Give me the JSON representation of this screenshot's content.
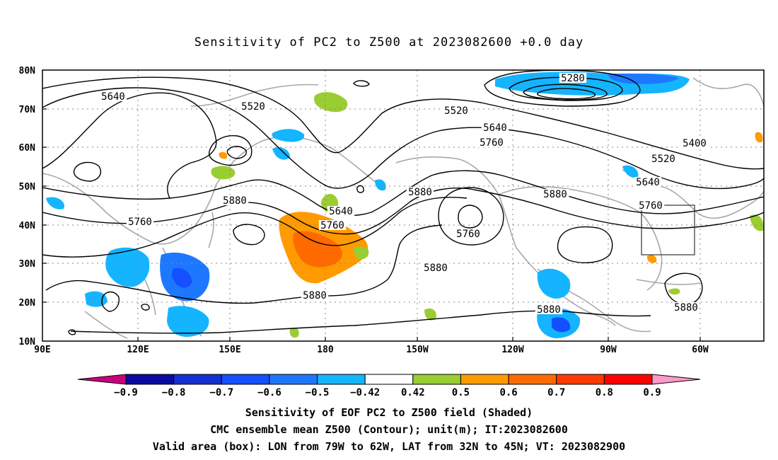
{
  "title": "Sensitivity of PC2 to Z500 at 2023082600 +0.0 day",
  "map": {
    "lat_labels": [
      "80N",
      "70N",
      "60N",
      "50N",
      "40N",
      "30N",
      "20N",
      "10N"
    ],
    "lon_labels": [
      "90E",
      "120E",
      "150E",
      "180",
      "150W",
      "120W",
      "90W",
      "60W"
    ],
    "contour_labels": [
      {
        "text": "5640"
      },
      {
        "text": "5520"
      },
      {
        "text": "5520"
      },
      {
        "text": "5280"
      },
      {
        "text": "5640"
      },
      {
        "text": "5760"
      },
      {
        "text": "5400"
      },
      {
        "text": "5520"
      },
      {
        "text": "5640"
      },
      {
        "text": "5760"
      },
      {
        "text": "5880"
      },
      {
        "text": "5880"
      },
      {
        "text": "5880"
      },
      {
        "text": "5760"
      },
      {
        "text": "5640"
      },
      {
        "text": "5760"
      },
      {
        "text": "5760"
      },
      {
        "text": "5880"
      },
      {
        "text": "5880"
      },
      {
        "text": "5880"
      },
      {
        "text": "5880"
      }
    ],
    "valid_box": {
      "lon_from": "79W",
      "lon_to": "62W",
      "lat_from": "32N",
      "lat_to": "45N"
    }
  },
  "colorbar": {
    "labels": [
      "-0.9",
      "-0.8",
      "-0.7",
      "-0.6",
      "-0.5",
      "-0.42",
      "0.42",
      "0.5",
      "0.6",
      "0.7",
      "0.8",
      "0.9"
    ],
    "colors": [
      "#c8007e",
      "#0a0aa0",
      "#1430d0",
      "#1450ff",
      "#1e78ff",
      "#14b4ff",
      "#ffffff",
      "#9acd32",
      "#ff9a00",
      "#ff6a00",
      "#ff3a00",
      "#ff0000",
      "#ff99cc"
    ]
  },
  "captions": {
    "line1": "Sensitivity of EOF PC2 to Z500 field (Shaded)",
    "line2": "CMC ensemble mean Z500 (Contour); unit(m); IT:2023082600",
    "line3": "Valid area (box): LON from 79W to 62W, LAT from 32N to 45N; VT: 2023082900"
  }
}
